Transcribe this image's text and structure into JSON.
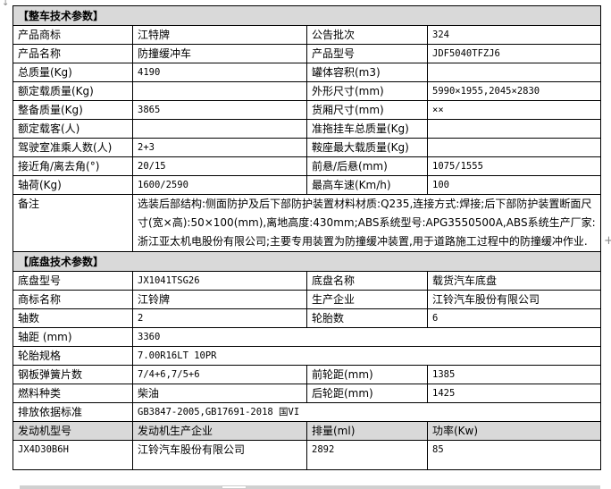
{
  "vehicle_section": {
    "title": "【整车技术参数】",
    "rows": [
      [
        "产品商标",
        "江特牌",
        "公告批次",
        "324"
      ],
      [
        "产品名称",
        "防撞缓冲车",
        "产品型号",
        "JDF5040TFZJ6"
      ],
      [
        "总质量(Kg)",
        "4190",
        "罐体容积(m3)",
        ""
      ],
      [
        "额定载质量(Kg)",
        "",
        "外形尺寸(mm)",
        "5990×1955,2045×2830"
      ],
      [
        "整备质量(Kg)",
        "3865",
        "货厢尺寸(mm)",
        "××"
      ],
      [
        "额定载客(人)",
        "",
        "准拖挂车总质量(Kg)",
        ""
      ],
      [
        "驾驶室准乘人数(人)",
        "2+3",
        "鞍座最大载质量(Kg)",
        ""
      ],
      [
        "接近角/离去角(°)",
        "20/15",
        "前悬/后悬(mm)",
        "1075/1555"
      ],
      [
        "轴荷(Kg)",
        "1600/2590",
        "最高车速(Km/h)",
        "100"
      ]
    ],
    "remark_label": "备注",
    "remark": "选装后部结构:侧面防护及后下部防护装置材料材质:Q235,连接方式:焊接;后下部防护装置断面尺寸(宽×高):50×100(mm),离地高度:430mm;ABS系统型号:APG3550500A,ABS系统生产厂家:浙江亚太机电股份有限公司;主要专用装置为防撞缓冲装置,用于道路施工过程中的防撞缓冲作业."
  },
  "chassis_section": {
    "title": "【底盘技术参数】",
    "rows4": [
      [
        "底盘型号",
        "JX1041TSG26",
        "底盘名称",
        "载货汽车底盘"
      ],
      [
        "商标名称",
        "江铃牌",
        "生产企业",
        "江铃汽车股份有限公司"
      ],
      [
        "轴数",
        "2",
        "轮胎数",
        "6"
      ]
    ],
    "wheelbase": [
      "轴距 (mm)",
      "3360"
    ],
    "tire": [
      "轮胎规格",
      "7.00R16LT 10PR"
    ],
    "rows4b": [
      [
        "钢板弹簧片数",
        "7/4+6,7/5+6",
        "前轮距(mm)",
        "1385"
      ],
      [
        "燃料种类",
        "柴油",
        "后轮距(mm)",
        "1425"
      ]
    ],
    "emission": [
      "排放依据标准",
      "GB3847-2005,GB17691-2018 国VI"
    ],
    "engine_header": [
      "发动机型号",
      "发动机生产企业",
      "排量(ml)",
      "功率(Kw)"
    ],
    "engine_row": [
      "JX4D30B6H",
      "江铃汽车股份有限公司",
      "2892",
      "85"
    ]
  }
}
